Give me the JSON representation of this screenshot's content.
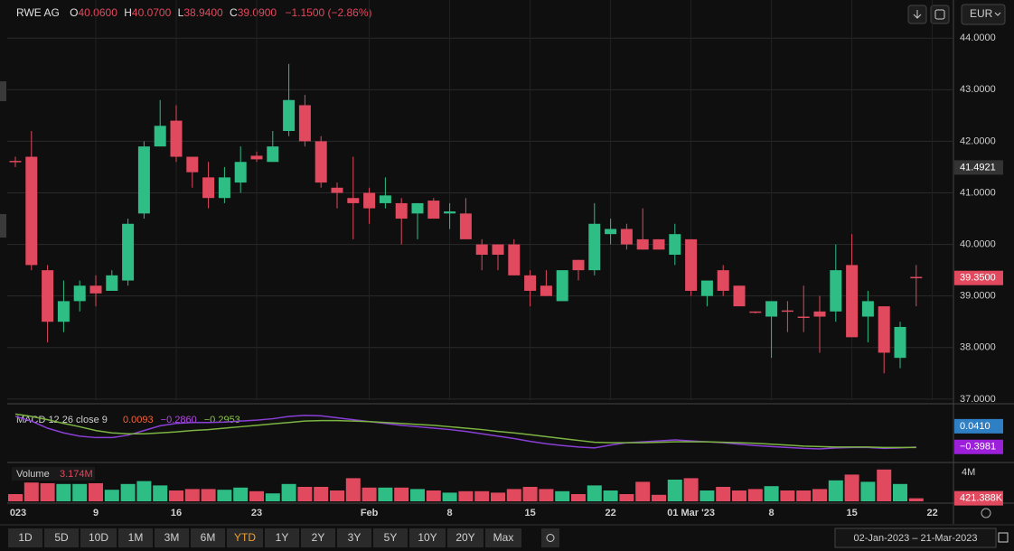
{
  "header": {
    "symbol": "RWE AG",
    "ohlc": [
      {
        "key": "O",
        "value": "40.0600"
      },
      {
        "key": "H",
        "value": "40.0700"
      },
      {
        "key": "L",
        "value": "38.9400"
      },
      {
        "key": "C",
        "value": "39.0900"
      }
    ],
    "change": "−1.1500 (−2.86%)"
  },
  "currency": "EUR",
  "chart_data": [
    {
      "type": "candlestick",
      "up_color": "#2ebd85",
      "down_color": "#e0495e",
      "grid": true,
      "categories": [
        "023",
        null,
        null,
        null,
        null,
        "9",
        null,
        null,
        null,
        null,
        "16",
        null,
        null,
        null,
        null,
        "23",
        null,
        null,
        null,
        null,
        null,
        null,
        "Feb",
        null,
        null,
        null,
        null,
        "8",
        null,
        null,
        null,
        null,
        "15",
        null,
        null,
        null,
        null,
        "22",
        null,
        null,
        null,
        null,
        "01 Mar '23",
        null,
        null,
        null,
        null,
        "8",
        null,
        null,
        null,
        null,
        "15",
        null,
        null,
        null,
        null,
        "22"
      ],
      "open": [
        41.62,
        41.7,
        39.5,
        38.5,
        38.9,
        39.2,
        39.1,
        39.3,
        40.6,
        41.9,
        42.4,
        41.7,
        41.3,
        40.9,
        41.2,
        41.72,
        41.6,
        42.2,
        42.7,
        42.0,
        41.1,
        40.9,
        41.0,
        40.8,
        40.8,
        40.6,
        40.85,
        40.6,
        40.6,
        40.0,
        40.0,
        40.0,
        39.4,
        39.2,
        38.9,
        39.7,
        39.5,
        40.2,
        40.3,
        40.1,
        40.1,
        39.8,
        40.1,
        39.0,
        39.5,
        39.2,
        38.7,
        38.6,
        38.72,
        38.6,
        38.7,
        38.7,
        39.6,
        38.6,
        38.8,
        37.8,
        39.37,
        null
      ],
      "high": [
        41.7,
        42.2,
        39.6,
        39.3,
        39.3,
        39.4,
        39.5,
        40.5,
        42.0,
        42.8,
        42.7,
        41.7,
        41.6,
        41.5,
        41.9,
        41.8,
        42.2,
        43.5,
        42.9,
        42.1,
        41.2,
        41.7,
        41.1,
        41.3,
        40.9,
        40.8,
        40.9,
        40.8,
        40.9,
        40.1,
        40.0,
        40.1,
        39.5,
        39.5,
        39.5,
        39.7,
        40.8,
        40.5,
        40.4,
        40.7,
        40.1,
        40.4,
        40.1,
        39.3,
        39.6,
        39.2,
        38.7,
        38.9,
        38.9,
        39.2,
        39.0,
        40.0,
        40.2,
        39.1,
        38.8,
        38.5,
        39.6,
        null
      ],
      "low": [
        41.5,
        39.5,
        38.1,
        38.3,
        38.7,
        38.8,
        39.1,
        39.2,
        40.5,
        41.9,
        41.6,
        41.1,
        40.7,
        40.8,
        41.0,
        41.6,
        41.6,
        42.1,
        41.9,
        41.1,
        40.7,
        40.1,
        40.4,
        40.7,
        40.0,
        40.1,
        40.5,
        40.3,
        40.1,
        39.5,
        39.5,
        39.4,
        38.8,
        39.0,
        38.9,
        39.3,
        39.4,
        40.0,
        39.9,
        39.9,
        39.9,
        39.6,
        39.0,
        38.8,
        39.0,
        38.8,
        38.66,
        37.8,
        38.3,
        38.3,
        37.9,
        38.5,
        38.2,
        38.1,
        37.5,
        37.6,
        38.8,
        null
      ],
      "close": [
        41.6,
        39.6,
        38.5,
        38.9,
        39.2,
        39.05,
        39.4,
        40.4,
        41.9,
        42.3,
        41.7,
        41.4,
        40.9,
        41.3,
        41.6,
        41.65,
        41.9,
        42.8,
        42.0,
        41.2,
        41.0,
        40.8,
        40.7,
        40.95,
        40.5,
        40.8,
        40.5,
        40.64,
        40.1,
        39.8,
        39.8,
        39.4,
        39.1,
        39.0,
        39.5,
        39.5,
        40.4,
        40.3,
        40.0,
        39.9,
        39.9,
        40.2,
        39.1,
        39.3,
        39.1,
        38.8,
        38.68,
        38.9,
        38.7,
        38.58,
        38.6,
        39.5,
        38.2,
        38.9,
        37.9,
        38.4,
        39.35,
        null
      ],
      "ylim": [
        36.98,
        44.74
      ],
      "yticks": [
        {
          "value": 37,
          "label": "37.0000"
        },
        {
          "value": 38,
          "label": "38.0000"
        },
        {
          "value": 39,
          "label": "39.0000"
        },
        {
          "value": 40,
          "label": "40.0000"
        },
        {
          "value": 41,
          "label": "41.0000"
        },
        {
          "value": 42,
          "label": "42.0000"
        },
        {
          "value": 43,
          "label": "43.0000"
        },
        {
          "value": 44,
          "label": "44.0000"
        }
      ],
      "markers": [
        {
          "value": 41.4921,
          "label": "41.4921",
          "color": "#333333"
        },
        {
          "value": 39.35,
          "label": "39.3500",
          "color": "#e0495e"
        }
      ]
    },
    {
      "type": "line",
      "title": "MACD 12 26 close 9",
      "legend_values": [
        {
          "label": "0.0093",
          "color": "#f0643c"
        },
        {
          "label": "−0.2860",
          "color": "#b04ce0"
        },
        {
          "label": "−0.2953",
          "color": "#8bc34a"
        }
      ],
      "series": [
        {
          "color": "#8a3fd6",
          "values": [
            0.25,
            0.15,
            0.0,
            -0.1,
            -0.17,
            -0.2,
            -0.2,
            -0.15,
            -0.05,
            0.05,
            0.1,
            0.12,
            0.12,
            0.13,
            0.15,
            0.17,
            0.2,
            0.25,
            0.27,
            0.26,
            0.22,
            0.18,
            0.14,
            0.1,
            0.06,
            0.03,
            0.0,
            -0.03,
            -0.07,
            -0.12,
            -0.17,
            -0.22,
            -0.28,
            -0.33,
            -0.37,
            -0.4,
            -0.42,
            -0.36,
            -0.31,
            -0.29,
            -0.27,
            -0.25,
            -0.27,
            -0.29,
            -0.31,
            -0.34,
            -0.37,
            -0.39,
            -0.41,
            -0.43,
            -0.44,
            -0.42,
            -0.41,
            -0.41,
            -0.43,
            -0.42,
            -0.4,
            null
          ]
        },
        {
          "color": "#7cb342",
          "values": [
            0.3,
            0.25,
            0.18,
            0.1,
            0.03,
            -0.05,
            -0.1,
            -0.12,
            -0.12,
            -0.1,
            -0.08,
            -0.05,
            -0.03,
            0.0,
            0.03,
            0.06,
            0.09,
            0.12,
            0.15,
            0.16,
            0.16,
            0.15,
            0.14,
            0.12,
            0.1,
            0.08,
            0.06,
            0.03,
            0.0,
            -0.03,
            -0.07,
            -0.1,
            -0.14,
            -0.18,
            -0.22,
            -0.26,
            -0.3,
            -0.31,
            -0.31,
            -0.31,
            -0.3,
            -0.29,
            -0.29,
            -0.29,
            -0.3,
            -0.31,
            -0.32,
            -0.34,
            -0.36,
            -0.38,
            -0.39,
            -0.4,
            -0.4,
            -0.4,
            -0.41,
            -0.41,
            -0.41,
            null
          ]
        }
      ],
      "ylim": [
        -0.69,
        0.46
      ],
      "markers": [
        {
          "value": 0.041,
          "label": "0.0410",
          "color": "#2f7fc4"
        },
        {
          "value": -0.3981,
          "label": "−0.3981",
          "color": "#9c1fd9"
        }
      ]
    },
    {
      "type": "bar",
      "title": "Volume",
      "legend_value": "3.174M",
      "up_color": "#2ebd85",
      "down_color": "#e0495e",
      "values": [
        1.0,
        2.6,
        2.5,
        2.4,
        2.4,
        2.5,
        1.6,
        2.4,
        2.8,
        2.2,
        1.5,
        1.7,
        1.7,
        1.6,
        1.9,
        1.4,
        1.1,
        2.4,
        2.0,
        2.0,
        1.5,
        3.2,
        1.9,
        1.9,
        1.9,
        1.7,
        1.5,
        1.2,
        1.4,
        1.4,
        1.2,
        1.7,
        2.0,
        1.7,
        1.4,
        1.0,
        2.2,
        1.5,
        1.0,
        2.7,
        0.9,
        3.0,
        3.2,
        1.5,
        2.0,
        1.5,
        1.7,
        2.1,
        1.5,
        1.5,
        1.7,
        2.9,
        3.7,
        2.7,
        4.4,
        2.4,
        0.421388,
        null
      ],
      "ylim": [
        0,
        5
      ],
      "yticks": [
        {
          "value": 4,
          "label": "4M"
        }
      ],
      "markers": [
        {
          "value": 0.421388,
          "label": "421.388K",
          "color": "#e0495e"
        }
      ]
    }
  ],
  "toolbar": {
    "ranges": [
      "1D",
      "5D",
      "10D",
      "1M",
      "3M",
      "6M",
      "YTD",
      "1Y",
      "2Y",
      "3Y",
      "5Y",
      "10Y",
      "20Y",
      "Max"
    ],
    "active": 6,
    "date_range": "02-Jan-2023  –  21-Mar-2023"
  }
}
